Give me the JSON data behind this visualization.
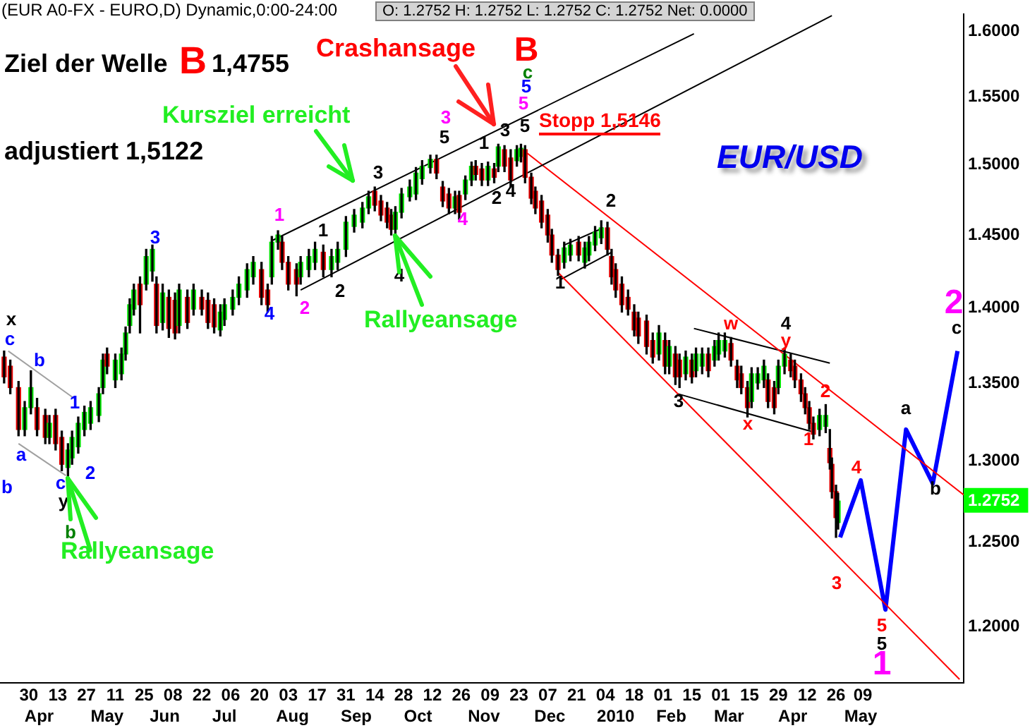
{
  "chart_data": {
    "type": "candlestick",
    "title": "(EUR A0-FX - EURO,D) Dynamic,0:00-24:00",
    "subtitle": "O: 1.2752   H: 1.2752   L: 1.2752   C: 1.2752   Net: 0.0000",
    "log": "y",
    "ylim": [
      1.168,
      1.613
    ],
    "yticks": [
      {
        "value": 1.2,
        "label": "1.2000"
      },
      {
        "value": 1.25,
        "label": "1.2500"
      },
      {
        "value": 1.2752,
        "label": "1.2752"
      },
      {
        "value": 1.3,
        "label": "1.3000"
      },
      {
        "value": 1.35,
        "label": "1.3500"
      },
      {
        "value": 1.4,
        "label": "1.4000"
      },
      {
        "value": 1.45,
        "label": "1.4500"
      },
      {
        "value": 1.5,
        "label": "1.5000"
      },
      {
        "value": 1.55,
        "label": "1.5500"
      },
      {
        "value": 1.6,
        "label": "1.6000"
      }
    ],
    "xlim": [
      "2009-03-16",
      "2010-06-27"
    ],
    "xticks": [
      {
        "value": "2009-03-30",
        "label": "30"
      },
      {
        "value": "2009-04-13",
        "label": "13"
      },
      {
        "value": "2009-04-27",
        "label": "27"
      },
      {
        "value": "2009-05-11",
        "label": "11"
      },
      {
        "value": "2009-05-25",
        "label": "25"
      },
      {
        "value": "2009-06-08",
        "label": "08"
      },
      {
        "value": "2009-06-22",
        "label": "22"
      },
      {
        "value": "2009-07-06",
        "label": "06"
      },
      {
        "value": "2009-07-20",
        "label": "20"
      },
      {
        "value": "2009-08-03",
        "label": "03"
      },
      {
        "value": "2009-08-17",
        "label": "17"
      },
      {
        "value": "2009-08-31",
        "label": "31"
      },
      {
        "value": "2009-09-14",
        "label": "14"
      },
      {
        "value": "2009-09-28",
        "label": "28"
      },
      {
        "value": "2009-10-12",
        "label": "12"
      },
      {
        "value": "2009-10-26",
        "label": "26"
      },
      {
        "value": "2009-11-09",
        "label": "09"
      },
      {
        "value": "2009-11-23",
        "label": "23"
      },
      {
        "value": "2009-12-07",
        "label": "07"
      },
      {
        "value": "2009-12-21",
        "label": "21"
      },
      {
        "value": "2010-01-04",
        "label": "04"
      },
      {
        "value": "2010-01-18",
        "label": "18"
      },
      {
        "value": "2010-02-01",
        "label": "01"
      },
      {
        "value": "2010-02-15",
        "label": "15"
      },
      {
        "value": "2010-03-01",
        "label": "01"
      },
      {
        "value": "2010-03-15",
        "label": "15"
      },
      {
        "value": "2010-03-29",
        "label": "29"
      },
      {
        "value": "2010-04-12",
        "label": "12"
      },
      {
        "value": "2010-04-26",
        "label": "26"
      },
      {
        "value": "2010-05-09",
        "label": "09"
      }
    ],
    "x2lim": [
      "2009-03-16",
      "2010-06-27"
    ],
    "x2ticks": [
      {
        "value": "2009-04-04",
        "label": "Apr"
      },
      {
        "value": "2009-05-07",
        "label": "May"
      },
      {
        "value": "2009-06-04",
        "label": "Jun"
      },
      {
        "value": "2009-07-03",
        "label": "Jul"
      },
      {
        "value": "2009-08-05",
        "label": "Aug"
      },
      {
        "value": "2009-09-05",
        "label": "Sep"
      },
      {
        "value": "2009-10-05",
        "label": "Oct"
      },
      {
        "value": "2009-11-06",
        "label": "Nov"
      },
      {
        "value": "2009-12-08",
        "label": "Dec"
      },
      {
        "value": "2010-01-09",
        "label": "2010"
      },
      {
        "value": "2010-02-05",
        "label": "Feb"
      },
      {
        "value": "2010-03-05",
        "label": "Mar"
      },
      {
        "value": "2010-04-05",
        "label": "Apr"
      },
      {
        "value": "2010-05-08",
        "label": "May"
      }
    ],
    "series": [
      {
        "x": [
          "2009-03-18",
          "2009-03-21",
          "2009-03-25",
          "2009-03-28",
          "2009-03-31",
          "2009-04-03",
          "2009-04-07",
          "2009-04-09",
          "2009-04-12",
          "2009-04-15",
          "2009-04-18",
          "2009-04-20",
          "2009-04-23",
          "2009-04-26",
          "2009-04-29",
          "2009-05-03",
          "2009-05-05",
          "2009-05-07",
          "2009-05-11",
          "2009-05-14",
          "2009-05-16",
          "2009-05-18",
          "2009-05-20",
          "2009-05-23",
          "2009-05-26",
          "2009-05-29",
          "2009-05-31",
          "2009-06-03",
          "2009-06-06",
          "2009-06-09",
          "2009-06-11",
          "2009-06-15",
          "2009-06-18",
          "2009-06-22",
          "2009-06-25",
          "2009-06-28",
          "2009-07-01",
          "2009-07-03",
          "2009-07-07",
          "2009-07-10",
          "2009-07-14",
          "2009-07-17",
          "2009-07-21",
          "2009-07-24",
          "2009-07-26",
          "2009-07-29",
          "2009-07-31",
          "2009-08-03",
          "2009-08-07",
          "2009-08-09",
          "2009-08-13",
          "2009-08-16",
          "2009-08-20",
          "2009-08-24",
          "2009-08-27",
          "2009-08-31",
          "2009-09-04",
          "2009-09-08",
          "2009-09-11",
          "2009-09-14",
          "2009-09-17",
          "2009-09-20",
          "2009-09-22",
          "2009-09-24",
          "2009-09-27",
          "2009-10-01",
          "2009-10-04",
          "2009-10-07",
          "2009-10-11",
          "2009-10-14",
          "2009-10-17",
          "2009-10-20",
          "2009-10-23",
          "2009-10-25",
          "2009-10-28",
          "2009-10-31",
          "2009-11-02",
          "2009-11-05",
          "2009-11-08",
          "2009-11-11",
          "2009-11-13",
          "2009-11-16",
          "2009-11-19",
          "2009-11-22",
          "2009-11-24",
          "2009-11-26",
          "2009-11-29",
          "2009-12-01",
          "2009-12-04",
          "2009-12-07",
          "2009-12-09",
          "2009-12-12",
          "2009-12-15",
          "2009-12-18",
          "2009-12-22",
          "2009-12-25",
          "2009-12-27",
          "2009-12-30",
          "2010-01-02",
          "2010-01-05",
          "2010-01-07",
          "2010-01-09",
          "2010-01-12",
          "2010-01-15",
          "2010-01-18",
          "2010-01-20",
          "2010-01-24",
          "2010-01-27",
          "2010-01-30",
          "2010-02-02",
          "2010-02-04",
          "2010-02-07",
          "2010-02-09",
          "2010-02-12",
          "2010-02-15",
          "2010-02-17",
          "2010-02-20",
          "2010-02-23",
          "2010-02-26",
          "2010-02-28",
          "2010-03-03",
          "2010-03-06",
          "2010-03-09",
          "2010-03-11",
          "2010-03-14",
          "2010-03-16",
          "2010-03-19",
          "2010-03-22",
          "2010-03-24",
          "2010-03-27",
          "2010-03-29",
          "2010-04-01",
          "2010-04-04",
          "2010-04-06",
          "2010-04-09",
          "2010-04-11",
          "2010-04-13",
          "2010-04-15",
          "2010-04-18",
          "2010-04-21",
          "2010-04-23",
          "2010-04-24",
          "2010-04-26",
          "2010-04-27"
        ],
        "ohlc": [
          [
            1.367,
            1.371,
            1.35,
            1.354
          ],
          [
            1.361,
            1.365,
            1.343,
            1.347
          ],
          [
            1.347,
            1.351,
            1.316,
            1.32
          ],
          [
            1.32,
            1.338,
            1.316,
            1.334
          ],
          [
            1.334,
            1.358,
            1.33,
            1.347
          ],
          [
            1.334,
            1.34,
            1.316,
            1.32
          ],
          [
            1.329,
            1.333,
            1.311,
            1.315
          ],
          [
            1.315,
            1.329,
            1.311,
            1.324
          ],
          [
            1.329,
            1.333,
            1.307,
            1.311
          ],
          [
            1.315,
            1.319,
            1.294,
            1.298
          ],
          [
            1.296,
            1.311,
            1.289,
            1.307
          ],
          [
            1.302,
            1.319,
            1.298,
            1.315
          ],
          [
            1.309,
            1.328,
            1.305,
            1.324
          ],
          [
            1.32,
            1.335,
            1.316,
            1.331
          ],
          [
            1.324,
            1.338,
            1.32,
            1.334
          ],
          [
            1.329,
            1.347,
            1.325,
            1.343
          ],
          [
            1.347,
            1.369,
            1.343,
            1.365
          ],
          [
            1.369,
            1.373,
            1.356,
            1.361
          ],
          [
            1.352,
            1.369,
            1.347,
            1.365
          ],
          [
            1.356,
            1.373,
            1.352,
            1.369
          ],
          [
            1.369,
            1.387,
            1.365,
            1.383
          ],
          [
            1.388,
            1.406,
            1.383,
            1.402
          ],
          [
            1.399,
            1.416,
            1.395,
            1.412
          ],
          [
            1.416,
            1.421,
            1.383,
            1.402
          ],
          [
            1.416,
            1.44,
            1.412,
            1.435
          ],
          [
            1.425,
            1.443,
            1.418,
            1.44
          ],
          [
            1.416,
            1.421,
            1.383,
            1.388
          ],
          [
            1.39,
            1.416,
            1.385,
            1.41
          ],
          [
            1.407,
            1.412,
            1.38,
            1.386
          ],
          [
            1.405,
            1.41,
            1.379,
            1.383
          ],
          [
            1.388,
            1.416,
            1.383,
            1.412
          ],
          [
            1.407,
            1.412,
            1.386,
            1.39
          ],
          [
            1.399,
            1.416,
            1.395,
            1.412
          ],
          [
            1.407,
            1.412,
            1.395,
            1.399
          ],
          [
            1.405,
            1.41,
            1.386,
            1.39
          ],
          [
            1.402,
            1.406,
            1.383,
            1.387
          ],
          [
            1.385,
            1.402,
            1.381,
            1.397
          ],
          [
            1.392,
            1.406,
            1.388,
            1.402
          ],
          [
            1.399,
            1.412,
            1.395,
            1.407
          ],
          [
            1.407,
            1.421,
            1.402,
            1.416
          ],
          [
            1.412,
            1.43,
            1.407,
            1.426
          ],
          [
            1.421,
            1.435,
            1.416,
            1.431
          ],
          [
            1.426,
            1.431,
            1.402,
            1.407
          ],
          [
            1.412,
            1.416,
            1.397,
            1.402
          ],
          [
            1.421,
            1.449,
            1.416,
            1.445
          ],
          [
            1.445,
            1.453,
            1.44,
            1.45
          ],
          [
            1.445,
            1.449,
            1.426,
            1.431
          ],
          [
            1.431,
            1.435,
            1.412,
            1.416
          ],
          [
            1.426,
            1.43,
            1.408,
            1.416
          ],
          [
            1.421,
            1.435,
            1.416,
            1.431
          ],
          [
            1.426,
            1.44,
            1.421,
            1.435
          ],
          [
            1.431,
            1.445,
            1.426,
            1.44
          ],
          [
            1.438,
            1.443,
            1.421,
            1.426
          ],
          [
            1.426,
            1.44,
            1.421,
            1.435
          ],
          [
            1.431,
            1.445,
            1.426,
            1.44
          ],
          [
            1.44,
            1.463,
            1.435,
            1.459
          ],
          [
            1.456,
            1.468,
            1.452,
            1.464
          ],
          [
            1.459,
            1.473,
            1.455,
            1.469
          ],
          [
            1.469,
            1.481,
            1.465,
            1.477
          ],
          [
            1.481,
            1.484,
            1.467,
            1.471
          ],
          [
            1.474,
            1.478,
            1.46,
            1.464
          ],
          [
            1.469,
            1.473,
            1.455,
            1.459
          ],
          [
            1.464,
            1.468,
            1.45,
            1.454
          ],
          [
            1.454,
            1.47,
            1.45,
            1.466
          ],
          [
            1.466,
            1.483,
            1.462,
            1.479
          ],
          [
            1.477,
            1.489,
            1.474,
            1.484
          ],
          [
            1.479,
            1.498,
            1.475,
            1.494
          ],
          [
            1.49,
            1.503,
            1.486,
            1.499
          ],
          [
            1.498,
            1.507,
            1.494,
            1.504
          ],
          [
            1.504,
            1.507,
            1.49,
            1.494
          ],
          [
            1.484,
            1.488,
            1.47,
            1.474
          ],
          [
            1.479,
            1.483,
            1.465,
            1.469
          ],
          [
            1.469,
            1.481,
            1.465,
            1.477
          ],
          [
            1.478,
            1.481,
            1.461,
            1.466
          ],
          [
            1.479,
            1.492,
            1.475,
            1.489
          ],
          [
            1.489,
            1.502,
            1.485,
            1.499
          ],
          [
            1.499,
            1.503,
            1.489,
            1.493
          ],
          [
            1.497,
            1.501,
            1.485,
            1.489
          ],
          [
            1.489,
            1.502,
            1.485,
            1.499
          ],
          [
            1.497,
            1.501,
            1.487,
            1.491
          ],
          [
            1.499,
            1.515,
            1.495,
            1.513
          ],
          [
            1.511,
            1.514,
            1.495,
            1.499
          ],
          [
            1.505,
            1.511,
            1.484,
            1.489
          ],
          [
            1.503,
            1.514,
            1.499,
            1.511
          ],
          [
            1.506,
            1.515,
            1.502,
            1.512
          ],
          [
            1.511,
            1.514,
            1.487,
            1.491
          ],
          [
            1.491,
            1.494,
            1.472,
            1.476
          ],
          [
            1.481,
            1.484,
            1.465,
            1.469
          ],
          [
            1.474,
            1.478,
            1.455,
            1.459
          ],
          [
            1.464,
            1.468,
            1.445,
            1.45
          ],
          [
            1.45,
            1.454,
            1.431,
            1.436
          ],
          [
            1.436,
            1.44,
            1.422,
            1.426
          ],
          [
            1.431,
            1.445,
            1.427,
            1.441
          ],
          [
            1.436,
            1.447,
            1.432,
            1.443
          ],
          [
            1.445,
            1.449,
            1.432,
            1.436
          ],
          [
            1.431,
            1.445,
            1.427,
            1.441
          ],
          [
            1.436,
            1.449,
            1.432,
            1.445
          ],
          [
            1.443,
            1.456,
            1.439,
            1.452
          ],
          [
            1.448,
            1.46,
            1.444,
            1.455
          ],
          [
            1.455,
            1.459,
            1.436,
            1.44
          ],
          [
            1.435,
            1.44,
            1.416,
            1.421
          ],
          [
            1.426,
            1.43,
            1.407,
            1.412
          ],
          [
            1.416,
            1.421,
            1.397,
            1.402
          ],
          [
            1.407,
            1.412,
            1.395,
            1.399
          ],
          [
            1.397,
            1.402,
            1.381,
            1.385
          ],
          [
            1.393,
            1.397,
            1.376,
            1.381
          ],
          [
            1.391,
            1.395,
            1.369,
            1.374
          ],
          [
            1.378,
            1.383,
            1.363,
            1.367
          ],
          [
            1.369,
            1.388,
            1.365,
            1.383
          ],
          [
            1.378,
            1.383,
            1.356,
            1.361
          ],
          [
            1.361,
            1.378,
            1.356,
            1.374
          ],
          [
            1.369,
            1.374,
            1.349,
            1.354
          ],
          [
            1.365,
            1.369,
            1.347,
            1.354
          ],
          [
            1.356,
            1.371,
            1.352,
            1.367
          ],
          [
            1.365,
            1.369,
            1.35,
            1.354
          ],
          [
            1.358,
            1.373,
            1.354,
            1.369
          ],
          [
            1.361,
            1.373,
            1.356,
            1.369
          ],
          [
            1.369,
            1.373,
            1.354,
            1.358
          ],
          [
            1.365,
            1.378,
            1.361,
            1.374
          ],
          [
            1.369,
            1.383,
            1.365,
            1.378
          ],
          [
            1.371,
            1.383,
            1.367,
            1.378
          ],
          [
            1.376,
            1.38,
            1.361,
            1.365
          ],
          [
            1.361,
            1.365,
            1.347,
            1.352
          ],
          [
            1.356,
            1.361,
            1.343,
            1.347
          ],
          [
            1.347,
            1.351,
            1.328,
            1.334
          ],
          [
            1.338,
            1.36,
            1.334,
            1.356
          ],
          [
            1.35,
            1.36,
            1.346,
            1.356
          ],
          [
            1.352,
            1.365,
            1.347,
            1.361
          ],
          [
            1.352,
            1.356,
            1.334,
            1.338
          ],
          [
            1.347,
            1.351,
            1.33,
            1.334
          ],
          [
            1.347,
            1.365,
            1.343,
            1.361
          ],
          [
            1.361,
            1.373,
            1.356,
            1.369
          ],
          [
            1.365,
            1.369,
            1.354,
            1.358
          ],
          [
            1.361,
            1.365,
            1.347,
            1.352
          ],
          [
            1.352,
            1.356,
            1.338,
            1.343
          ],
          [
            1.343,
            1.347,
            1.33,
            1.334
          ],
          [
            1.334,
            1.338,
            1.32,
            1.324
          ],
          [
            1.324,
            1.328,
            1.314,
            1.317
          ],
          [
            1.32,
            1.333,
            1.316,
            1.329
          ],
          [
            1.322,
            1.336,
            1.318,
            1.329
          ],
          [
            1.308,
            1.32,
            1.295,
            1.299
          ],
          [
            1.298,
            1.302,
            1.277,
            1.281
          ],
          [
            1.281,
            1.285,
            1.253,
            1.265
          ],
          [
            1.262,
            1.28,
            1.258,
            1.2752
          ]
        ],
        "colors": [
          "#e00000",
          "#e00000",
          "#e00000",
          "#00e000",
          "#00e000",
          "#e00000",
          "#e00000",
          "#00e000",
          "#e00000",
          "#e00000",
          "#00e000",
          "#00e000",
          "#00e000",
          "#00e000",
          "#00e000",
          "#00e000",
          "#00e000",
          "#e00000",
          "#00e000",
          "#00e000",
          "#00e000",
          "#00e000",
          "#00e000",
          "#e00000",
          "#00e000",
          "#00e000",
          "#e00000",
          "#00e000",
          "#e00000",
          "#e00000",
          "#00e000",
          "#e00000",
          "#00e000",
          "#e00000",
          "#e00000",
          "#e00000",
          "#00e000",
          "#00e000",
          "#00e000",
          "#00e000",
          "#00e000",
          "#00e000",
          "#e00000",
          "#e00000",
          "#00e000",
          "#00e000",
          "#e00000",
          "#e00000",
          "#e00000",
          "#00e000",
          "#00e000",
          "#00e000",
          "#e00000",
          "#00e000",
          "#00e000",
          "#00e000",
          "#00e000",
          "#00e000",
          "#00e000",
          "#e00000",
          "#e00000",
          "#e00000",
          "#e00000",
          "#00e000",
          "#00e000",
          "#00e000",
          "#00e000",
          "#00e000",
          "#00e000",
          "#e00000",
          "#e00000",
          "#e00000",
          "#00e000",
          "#e00000",
          "#00e000",
          "#00e000",
          "#e00000",
          "#e00000",
          "#00e000",
          "#e00000",
          "#00e000",
          "#e00000",
          "#e00000",
          "#00e000",
          "#00e000",
          "#e00000",
          "#e00000",
          "#e00000",
          "#e00000",
          "#e00000",
          "#e00000",
          "#e00000",
          "#00e000",
          "#00e000",
          "#e00000",
          "#00e000",
          "#00e000",
          "#00e000",
          "#00e000",
          "#e00000",
          "#e00000",
          "#e00000",
          "#e00000",
          "#e00000",
          "#e00000",
          "#e00000",
          "#e00000",
          "#e00000",
          "#00e000",
          "#e00000",
          "#00e000",
          "#e00000",
          "#e00000",
          "#00e000",
          "#e00000",
          "#00e000",
          "#00e000",
          "#e00000",
          "#00e000",
          "#00e000",
          "#00e000",
          "#e00000",
          "#e00000",
          "#e00000",
          "#e00000",
          "#00e000",
          "#00e000",
          "#00e000",
          "#e00000",
          "#e00000",
          "#00e000",
          "#00e000",
          "#e00000",
          "#e00000",
          "#e00000",
          "#e00000",
          "#e00000",
          "#e00000",
          "#00e000",
          "#00e000",
          "#e00000",
          "#e00000",
          "#e00000",
          "#00e000"
        ]
      },
      {
        "type": "line",
        "color": "#000000",
        "x": [
          "2009-07-26",
          "2010-02-16"
        ],
        "values": [
          1.446,
          1.598
        ]
      },
      {
        "type": "line",
        "color": "#000000",
        "x": [
          "2009-08-09",
          "2010-04-24"
        ],
        "values": [
          1.412,
          1.612
        ]
      },
      {
        "type": "line",
        "color": "#a0a0a0",
        "x": [
          "2009-03-20",
          "2009-04-21"
        ],
        "values": [
          1.371,
          1.34
        ]
      },
      {
        "type": "line",
        "color": "#a0a0a0",
        "x": [
          "2009-03-25",
          "2009-04-17"
        ],
        "values": [
          1.311,
          1.291
        ]
      },
      {
        "type": "line",
        "color": "#ff0000",
        "x": [
          "2009-11-24",
          "2010-06-27"
        ],
        "values": [
          1.512,
          1.279
        ]
      },
      {
        "type": "line",
        "color": "#ff0000",
        "x": [
          "2009-12-12",
          "2010-06-25"
        ],
        "values": [
          1.424,
          1.17
        ]
      },
      {
        "type": "line",
        "color": "#000000",
        "x": [
          "2009-12-15",
          "2010-01-03"
        ],
        "values": [
          1.443,
          1.455
        ]
      },
      {
        "type": "line",
        "color": "#000000",
        "x": [
          "2009-12-13",
          "2010-01-07"
        ],
        "values": [
          1.419,
          1.438
        ]
      },
      {
        "type": "line",
        "color": "#000000",
        "x": [
          "2010-02-16",
          "2010-04-23"
        ],
        "values": [
          1.386,
          1.363
        ]
      },
      {
        "type": "line",
        "color": "#000000",
        "x": [
          "2010-02-08",
          "2010-04-16"
        ],
        "values": [
          1.343,
          1.318
        ]
      },
      {
        "type": "line",
        "color": "#0000ff",
        "x": [
          "2010-04-28",
          "2010-05-08",
          "2010-05-20",
          "2010-05-30",
          "2010-06-12",
          "2010-06-24"
        ],
        "values": [
          1.253,
          1.288,
          1.21,
          1.32,
          1.286,
          1.371
        ]
      }
    ],
    "annotations": [
      "Ziel der Welle",
      "B",
      "1,4755",
      "adjustiert 1,5122",
      "Crashansage",
      "Kursziel erreicht",
      {
        "text": "Rallyeansage",
        "x": "2009-09-24",
        "y": 1.45
      },
      {
        "text": "Rallyeansage",
        "x": "2009-04-18",
        "y": 1.289
      },
      "Stopp 1,5146",
      "EUR/USD",
      "x",
      "c",
      "b",
      "1",
      "a",
      "b",
      "c",
      "2",
      "y",
      "b",
      "3",
      "4",
      "1",
      "2",
      "1",
      "2",
      "3",
      "4",
      "3",
      "5",
      "1",
      "4",
      "2",
      "3",
      "4",
      "5",
      "5",
      "5",
      "c",
      "B",
      "1",
      "2",
      "3",
      "w",
      "x",
      "4",
      "y",
      "1",
      "2",
      "3",
      "4",
      "a",
      "b",
      "c",
      "2",
      "5",
      "5",
      "1"
    ]
  }
}
